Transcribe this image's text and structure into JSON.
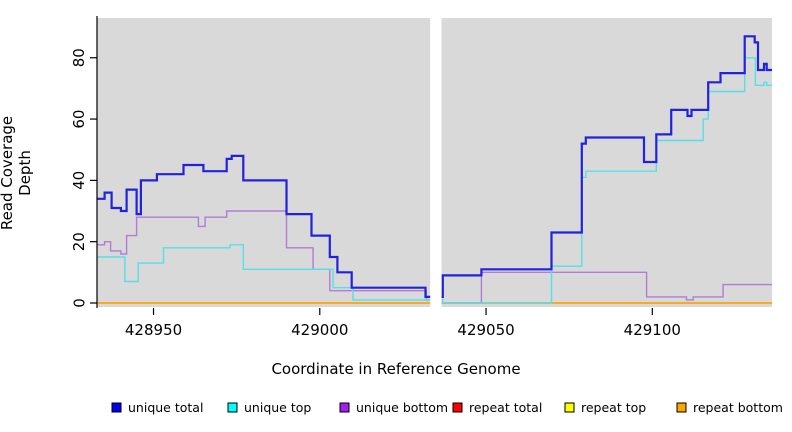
{
  "figure": {
    "background": "#FFFFFF",
    "plot_background": "#D9D9D9",
    "axis_color": "#000000"
  },
  "chart_data": {
    "type": "line",
    "style": "step",
    "title": "",
    "xlabel": "Coordinate in Reference Genome",
    "ylabel": "Read Coverage Depth",
    "x_range": [
      428933,
      429136
    ],
    "y_range": [
      0,
      90
    ],
    "x_ticks": [
      428950,
      429000,
      429050,
      429100
    ],
    "y_ticks": [
      0,
      20,
      40,
      60,
      80
    ],
    "grid": false,
    "legend_position": "bottom",
    "gap_region": {
      "x_start": 429033.2,
      "x_end": 429036.6
    },
    "draw_order": [
      "repeat total",
      "repeat top",
      "repeat bottom",
      "unique bottom",
      "unique top",
      "unique total"
    ],
    "series": [
      {
        "name": "unique total",
        "color": "#2222DD",
        "legend_color": "#0000EE",
        "line_width": 2.2,
        "steps": [
          [
            428933,
            34
          ],
          [
            428935.3,
            36
          ],
          [
            428937.4,
            31
          ],
          [
            428940.2,
            30
          ],
          [
            428941.9,
            37
          ],
          [
            428944.9,
            29
          ],
          [
            428946.2,
            40
          ],
          [
            428951,
            42
          ],
          [
            428959,
            45
          ],
          [
            428965,
            43
          ],
          [
            428972,
            47
          ],
          [
            428973.5,
            48
          ],
          [
            428977,
            40
          ],
          [
            428990,
            29
          ],
          [
            428997.5,
            22
          ],
          [
            429003,
            15
          ],
          [
            429005.3,
            10
          ],
          [
            429009.6,
            5
          ],
          [
            429031.8,
            2
          ],
          [
            429037,
            9
          ],
          [
            429048.6,
            11
          ],
          [
            429069.7,
            23
          ],
          [
            429078.8,
            52
          ],
          [
            429080,
            54
          ],
          [
            429097.5,
            46
          ],
          [
            429101.2,
            55
          ],
          [
            429105.7,
            63
          ],
          [
            429110.6,
            61
          ],
          [
            429111.8,
            63
          ],
          [
            429116.8,
            72
          ],
          [
            429120.5,
            75
          ],
          [
            429127.8,
            87
          ],
          [
            429130.8,
            85
          ],
          [
            429131.8,
            76
          ],
          [
            429133.6,
            78
          ],
          [
            429134.4,
            76
          ]
        ]
      },
      {
        "name": "unique top",
        "color": "#55E0E8",
        "legend_color": "#00FFFF",
        "line_width": 1.4,
        "steps": [
          [
            428933,
            15
          ],
          [
            428941.4,
            7
          ],
          [
            428945.4,
            13
          ],
          [
            428953,
            18
          ],
          [
            428973,
            19
          ],
          [
            428977,
            11
          ],
          [
            429004,
            5
          ],
          [
            429010,
            1
          ],
          [
            429037,
            0
          ],
          [
            429069.7,
            12
          ],
          [
            429078.8,
            41
          ],
          [
            429080,
            43
          ],
          [
            429101.2,
            53
          ],
          [
            429115.3,
            60
          ],
          [
            429116.8,
            69
          ],
          [
            429127.8,
            80
          ],
          [
            429131,
            71
          ],
          [
            429133.6,
            72
          ],
          [
            429134.4,
            71
          ]
        ]
      },
      {
        "name": "unique bottom",
        "color": "#B07CD8",
        "legend_color": "#A020F0",
        "line_width": 1.4,
        "steps": [
          [
            428933,
            19
          ],
          [
            428935.3,
            20
          ],
          [
            428937.1,
            17
          ],
          [
            428940.2,
            16
          ],
          [
            428941.9,
            22
          ],
          [
            428944.9,
            28
          ],
          [
            428963.5,
            25
          ],
          [
            428965.5,
            28
          ],
          [
            428972,
            30
          ],
          [
            428990,
            18
          ],
          [
            428998,
            11
          ],
          [
            429003,
            4
          ],
          [
            429032,
            1
          ],
          [
            429037,
            0
          ],
          [
            429048.6,
            10
          ],
          [
            429098.3,
            2
          ],
          [
            429110.3,
            1
          ],
          [
            429112.3,
            2
          ],
          [
            429121.3,
            6
          ]
        ]
      },
      {
        "name": "repeat total",
        "color": "#FF0000",
        "legend_color": "#FF0000",
        "line_width": 1.2,
        "steps": [
          [
            428933,
            0
          ]
        ]
      },
      {
        "name": "repeat top",
        "color": "#FFFF00",
        "legend_color": "#FFFF00",
        "line_width": 1.2,
        "steps": [
          [
            428933,
            0
          ]
        ]
      },
      {
        "name": "repeat bottom",
        "color": "#FFA500",
        "legend_color": "#FFA500",
        "line_width": 1.6,
        "steps": [
          [
            428933,
            0
          ]
        ]
      }
    ]
  },
  "axes": {
    "x_tick_labels": [
      "428950",
      "429000",
      "429050",
      "429100"
    ],
    "y_tick_labels": [
      "0",
      "20",
      "40",
      "60",
      "80"
    ]
  },
  "legend": {
    "items": [
      {
        "label": "unique total",
        "swatch_color": "#0000EE"
      },
      {
        "label": "unique top",
        "swatch_color": "#00FFFF"
      },
      {
        "label": "unique bottom",
        "swatch_color": "#A020F0"
      },
      {
        "label": "repeat total",
        "swatch_color": "#FF0000"
      },
      {
        "label": "repeat top",
        "swatch_color": "#FFFF00"
      },
      {
        "label": "repeat bottom",
        "swatch_color": "#FFA500"
      }
    ]
  }
}
